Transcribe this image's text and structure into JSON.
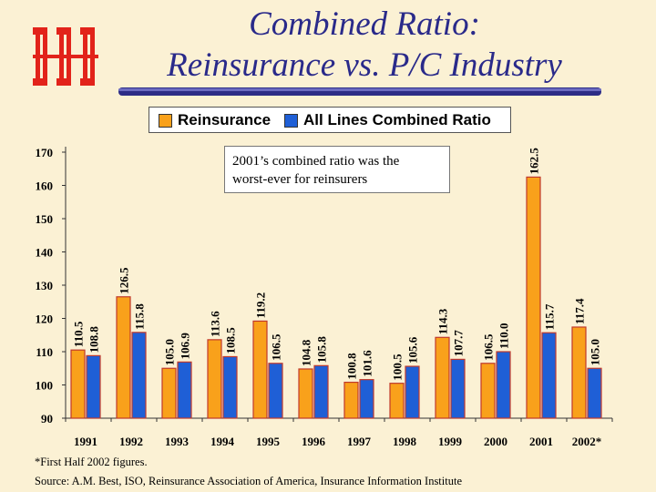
{
  "slide": {
    "title_line1": "Combined Ratio:",
    "title_line2": "Reinsurance vs. P/C Industry",
    "logo_label": "iii logo"
  },
  "legend": {
    "reinsurance": "Reinsurance",
    "all_lines": "All Lines Combined Ratio"
  },
  "annotation": {
    "line1": "2001’s combined ratio was the",
    "line2": "worst-ever for reinsurers"
  },
  "footnote": "*First Half 2002 figures.",
  "source": "Source: A.M. Best, ISO, Reinsurance Association of America, Insurance Information Institute",
  "colors": {
    "reinsurance": "#f9a11b",
    "all_lines": "#1f5fd6",
    "bar_edge": "#c0392b",
    "logo": "#e2231a",
    "title": "#2a2a8a"
  },
  "chart_data": {
    "type": "bar",
    "title": "Combined Ratio: Reinsurance vs. P/C Industry",
    "categories": [
      "1991",
      "1992",
      "1993",
      "1994",
      "1995",
      "1996",
      "1997",
      "1998",
      "1999",
      "2000",
      "2001",
      "2002*"
    ],
    "series": [
      {
        "name": "Reinsurance",
        "values": [
          110.5,
          126.5,
          105.0,
          113.6,
          119.2,
          104.8,
          100.8,
          100.5,
          114.3,
          106.5,
          162.5,
          117.4
        ]
      },
      {
        "name": "All Lines Combined Ratio",
        "values": [
          108.8,
          115.8,
          106.9,
          108.5,
          106.5,
          105.8,
          101.6,
          105.6,
          107.7,
          110.0,
          115.7,
          105.0
        ]
      }
    ],
    "value_labels": [
      [
        "110.5",
        "126.5",
        "105.0",
        "113.6",
        "119.2",
        "104.8",
        "100.8",
        "100.5",
        "114.3",
        "106.5",
        "162.5",
        "117.4"
      ],
      [
        "108.8",
        "115.8",
        "106.9",
        "108.5",
        "106.5",
        "105.8",
        "101.6",
        "105.6",
        "107.7",
        "110.0",
        "115.7",
        "105.0"
      ]
    ],
    "y_ticks": [
      90,
      100,
      110,
      120,
      130,
      140,
      150,
      160,
      170
    ],
    "ylim": [
      90,
      170
    ],
    "xlabel": "",
    "ylabel": "",
    "grid": false,
    "legend_position": "top"
  }
}
